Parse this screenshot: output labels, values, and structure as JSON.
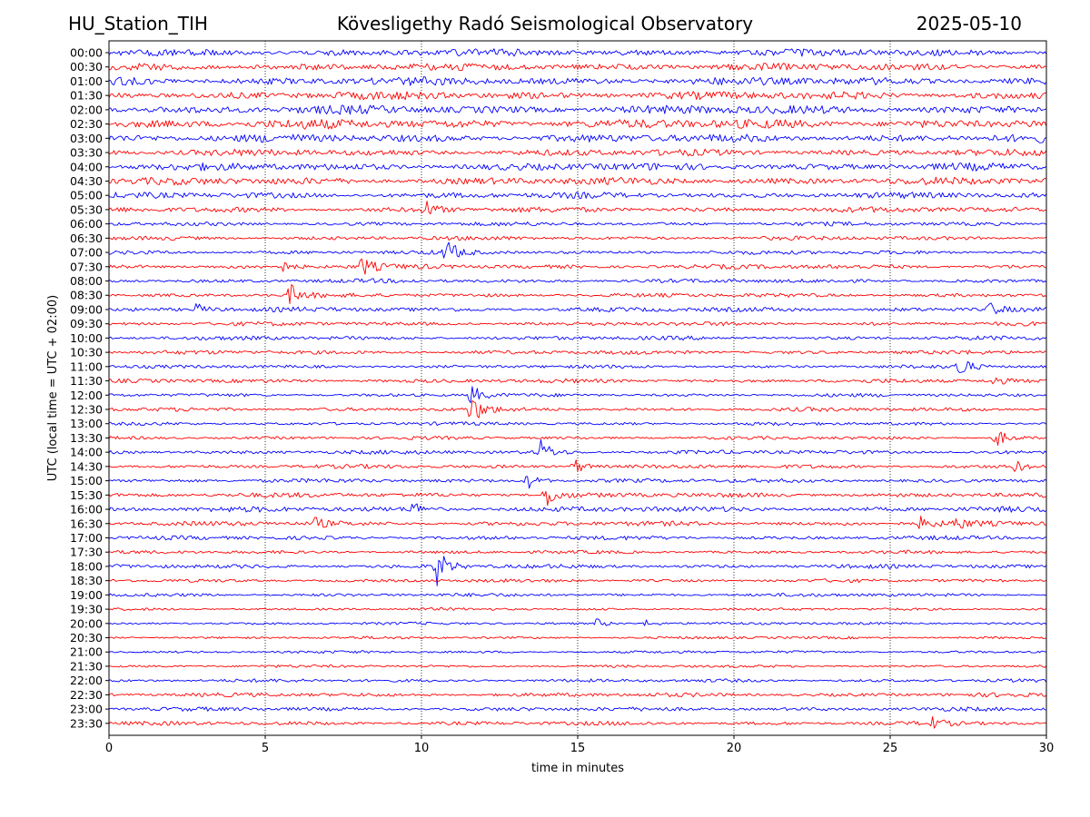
{
  "header": {
    "station": "HU_Station_TIH",
    "observatory": "Kövesligethy Radó Seismological Observatory",
    "date": "2025-05-10"
  },
  "chart_data": {
    "type": "line",
    "title": "Kövesligethy Radó Seismological Observatory",
    "xlabel": "time in minutes",
    "ylabel": "UTC (local time = UTC + 02:00)",
    "xlim": [
      0,
      30
    ],
    "xticks": [
      0,
      5,
      10,
      15,
      20,
      25,
      30
    ],
    "grid": "vertical dotted lines at x ticks",
    "colors": [
      "#0000ff",
      "#ff0000"
    ],
    "rows": [
      {
        "label": "00:00",
        "noise": 0.55,
        "events": []
      },
      {
        "label": "00:30",
        "noise": 0.55,
        "events": []
      },
      {
        "label": "01:00",
        "noise": 0.6,
        "events": []
      },
      {
        "label": "01:30",
        "noise": 0.6,
        "events": []
      },
      {
        "label": "02:00",
        "noise": 0.65,
        "events": []
      },
      {
        "label": "02:30",
        "noise": 0.7,
        "events": []
      },
      {
        "label": "03:00",
        "noise": 0.6,
        "events": []
      },
      {
        "label": "03:30",
        "noise": 0.5,
        "events": []
      },
      {
        "label": "04:00",
        "noise": 0.55,
        "events": []
      },
      {
        "label": "04:30",
        "noise": 0.55,
        "events": []
      },
      {
        "label": "05:00",
        "noise": 0.45,
        "events": []
      },
      {
        "label": "05:30",
        "noise": 0.4,
        "events": [
          {
            "t": 10.1,
            "amp": 1.6
          }
        ]
      },
      {
        "label": "06:00",
        "noise": 0.3,
        "events": []
      },
      {
        "label": "06:30",
        "noise": 0.3,
        "events": []
      },
      {
        "label": "07:00",
        "noise": 0.3,
        "events": [
          {
            "t": 10.8,
            "amp": 2.2
          }
        ]
      },
      {
        "label": "07:30",
        "noise": 0.35,
        "events": [
          {
            "t": 8.1,
            "amp": 1.6
          },
          {
            "t": 5.5,
            "amp": 0.9
          }
        ]
      },
      {
        "label": "08:00",
        "noise": 0.3,
        "events": []
      },
      {
        "label": "08:30",
        "noise": 0.3,
        "events": [
          {
            "t": 5.8,
            "amp": 1.8
          }
        ]
      },
      {
        "label": "09:00",
        "noise": 0.35,
        "events": [
          {
            "t": 2.8,
            "amp": 1.0
          },
          {
            "t": 28.2,
            "amp": 1.4
          }
        ]
      },
      {
        "label": "09:30",
        "noise": 0.3,
        "events": []
      },
      {
        "label": "10:00",
        "noise": 0.3,
        "events": []
      },
      {
        "label": "10:30",
        "noise": 0.3,
        "events": []
      },
      {
        "label": "11:00",
        "noise": 0.25,
        "events": [
          {
            "t": 27.2,
            "amp": 2.0
          }
        ]
      },
      {
        "label": "11:30",
        "noise": 0.3,
        "events": [
          {
            "t": 28.3,
            "amp": 0.8
          }
        ]
      },
      {
        "label": "12:00",
        "noise": 0.25,
        "events": [
          {
            "t": 11.6,
            "amp": 1.8
          }
        ]
      },
      {
        "label": "12:30",
        "noise": 0.3,
        "events": [
          {
            "t": 11.6,
            "amp": 2.6
          }
        ]
      },
      {
        "label": "13:00",
        "noise": 0.25,
        "events": []
      },
      {
        "label": "13:30",
        "noise": 0.25,
        "events": [
          {
            "t": 28.4,
            "amp": 1.6
          }
        ]
      },
      {
        "label": "14:00",
        "noise": 0.3,
        "events": [
          {
            "t": 13.8,
            "amp": 2.2
          }
        ]
      },
      {
        "label": "14:30",
        "noise": 0.3,
        "events": [
          {
            "t": 14.9,
            "amp": 1.4
          },
          {
            "t": 29.0,
            "amp": 1.0
          }
        ]
      },
      {
        "label": "15:00",
        "noise": 0.3,
        "events": [
          {
            "t": 13.4,
            "amp": 1.4
          }
        ]
      },
      {
        "label": "15:30",
        "noise": 0.35,
        "events": [
          {
            "t": 14.0,
            "amp": 2.2
          }
        ]
      },
      {
        "label": "16:00",
        "noise": 0.4,
        "events": [
          {
            "t": 9.7,
            "amp": 1.2
          }
        ]
      },
      {
        "label": "16:30",
        "noise": 0.35,
        "events": [
          {
            "t": 6.6,
            "amp": 1.0
          },
          {
            "t": 26.0,
            "amp": 1.2
          },
          {
            "t": 27.1,
            "amp": 1.0
          }
        ]
      },
      {
        "label": "17:00",
        "noise": 0.3,
        "events": []
      },
      {
        "label": "17:30",
        "noise": 0.25,
        "events": []
      },
      {
        "label": "18:00",
        "noise": 0.3,
        "events": [
          {
            "t": 10.5,
            "amp": 3.2
          }
        ]
      },
      {
        "label": "18:30",
        "noise": 0.25,
        "events": []
      },
      {
        "label": "19:00",
        "noise": 0.25,
        "events": []
      },
      {
        "label": "19:30",
        "noise": 0.2,
        "events": []
      },
      {
        "label": "20:00",
        "noise": 0.2,
        "events": [
          {
            "t": 15.6,
            "amp": 0.8
          },
          {
            "t": 17.2,
            "amp": 0.6
          }
        ]
      },
      {
        "label": "20:30",
        "noise": 0.2,
        "events": []
      },
      {
        "label": "21:00",
        "noise": 0.2,
        "events": []
      },
      {
        "label": "21:30",
        "noise": 0.2,
        "events": []
      },
      {
        "label": "22:00",
        "noise": 0.25,
        "events": []
      },
      {
        "label": "22:30",
        "noise": 0.3,
        "events": []
      },
      {
        "label": "23:00",
        "noise": 0.3,
        "events": []
      },
      {
        "label": "23:30",
        "noise": 0.3,
        "events": [
          {
            "t": 26.3,
            "amp": 1.0
          }
        ]
      }
    ]
  }
}
